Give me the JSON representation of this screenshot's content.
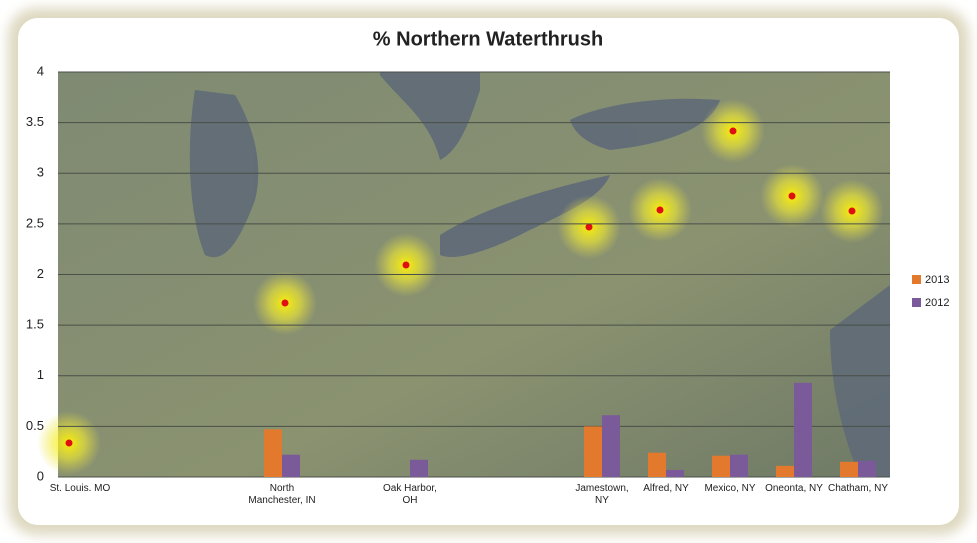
{
  "chart_data": {
    "type": "bar",
    "title": "% Northern Waterthrush",
    "categories": [
      "St. Louis. MO",
      null,
      null,
      "North Manchester, IN",
      null,
      "Oak Harbor, OH",
      null,
      null,
      "Jamestown, NY",
      "Alfred, NY",
      "Mexico, NY",
      "Oneonta, NY",
      "Chatham, NY"
    ],
    "series": [
      {
        "name": "2013",
        "color": "#e2792c",
        "values": [
          null,
          null,
          null,
          0.47,
          null,
          null,
          null,
          null,
          0.5,
          0.24,
          0.21,
          0.11,
          0.15
        ]
      },
      {
        "name": "2012",
        "color": "#7a5a98",
        "values": [
          null,
          null,
          null,
          0.22,
          null,
          0.17,
          null,
          null,
          0.61,
          0.07,
          0.22,
          0.93,
          0.16
        ]
      }
    ],
    "ylim": [
      0,
      4
    ],
    "yticks": [
      0,
      0.5,
      1,
      1.5,
      2,
      2.5,
      3,
      3.5,
      4
    ],
    "grid": true,
    "legend": "right"
  }
}
